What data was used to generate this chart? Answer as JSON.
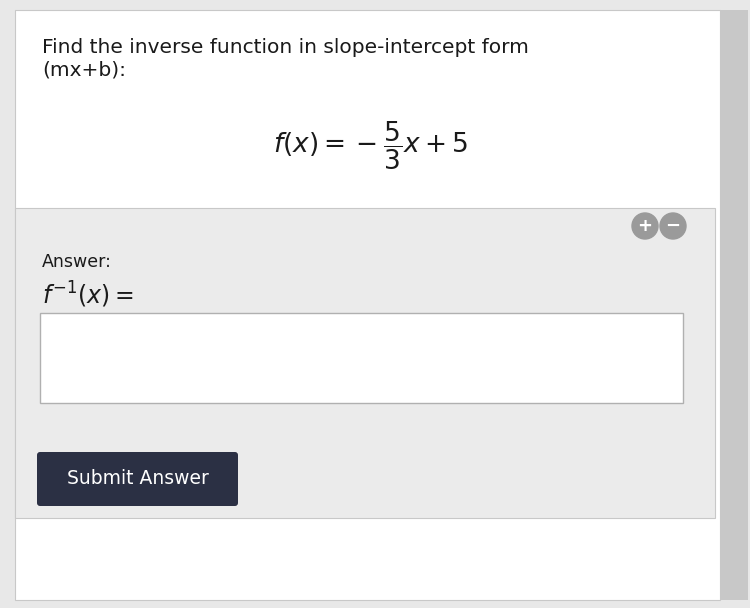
{
  "bg_outer": "#e8e8e8",
  "bg_white": "#ffffff",
  "bg_gray_panel": "#ebebeb",
  "bg_input": "#ffffff",
  "btn_bg": "#2b3044",
  "btn_text": "#ffffff",
  "text_dark": "#1a1a1a",
  "text_mid": "#333333",
  "circle_color": "#9a9a9a",
  "title_line1": "Find the inverse function in slope-intercept form",
  "title_line2": "(mx+b):",
  "formula": "$f(x) = -\\dfrac{5}{3}x + 5$",
  "answer_label": "Answer:",
  "answer_formula": "$f^{-1}(x) =$",
  "button_label": "Submit Answer",
  "title_fontsize": 14.5,
  "formula_fontsize": 19,
  "answer_label_fontsize": 12.5,
  "answer_formula_fontsize": 17,
  "button_fontsize": 13.5,
  "right_bar_color": "#c8c8c8",
  "panel_border": "#c8c8c8",
  "input_border": "#b0b0b0"
}
